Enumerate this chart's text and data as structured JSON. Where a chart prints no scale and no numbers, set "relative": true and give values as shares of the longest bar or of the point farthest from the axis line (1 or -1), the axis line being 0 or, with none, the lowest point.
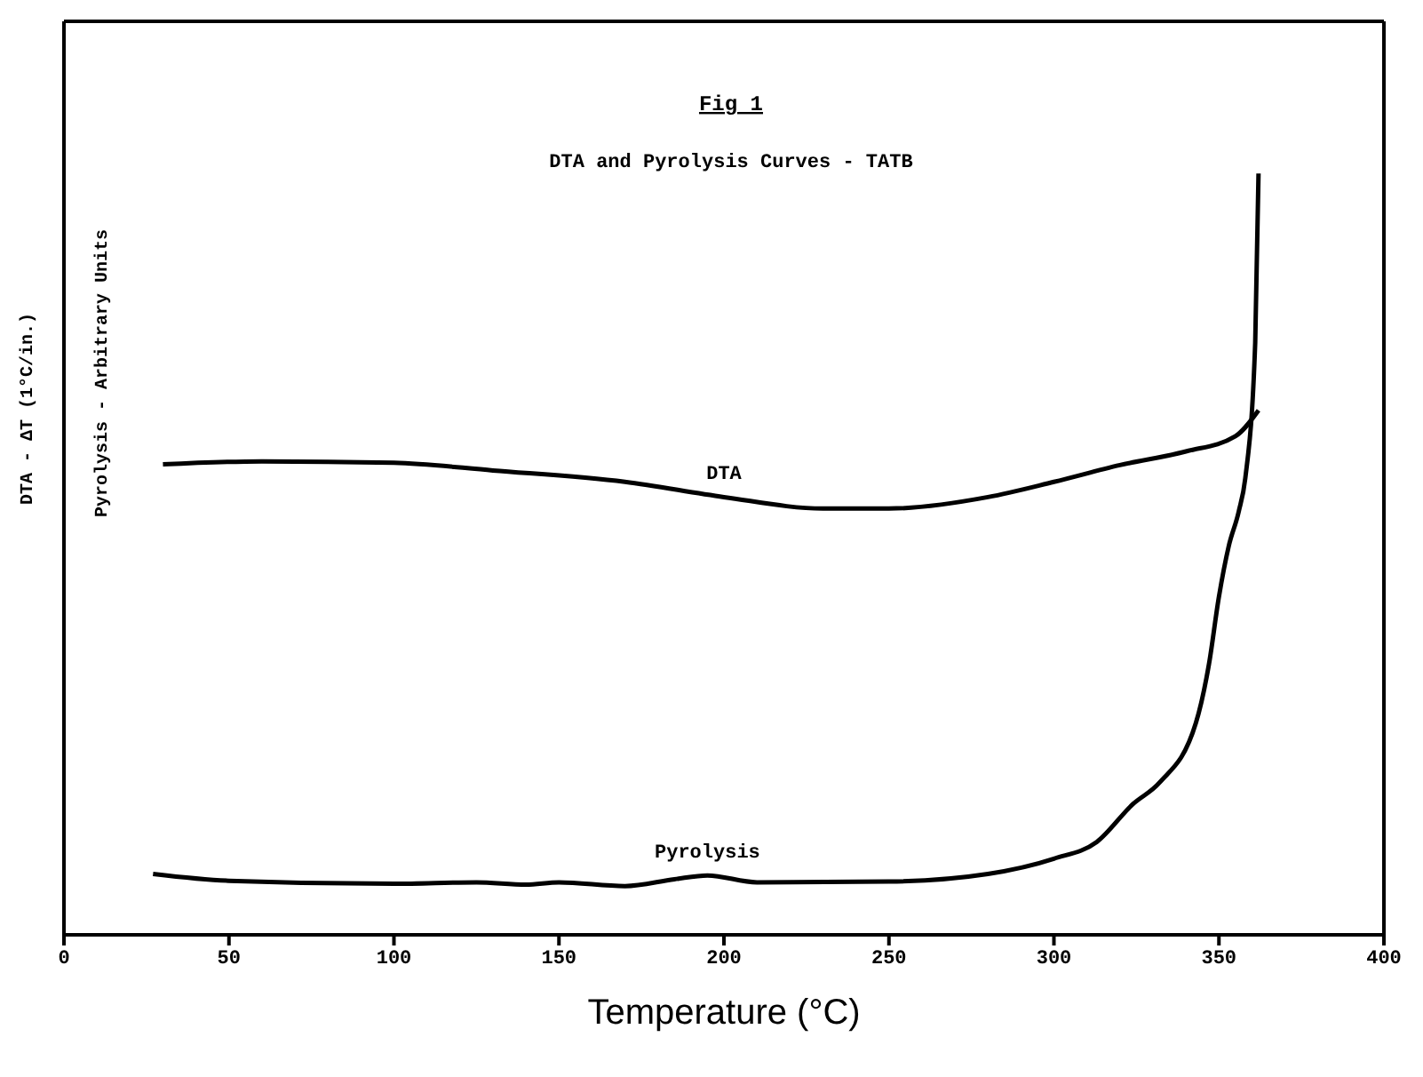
{
  "chart_data": {
    "type": "line",
    "title": "Fig 1",
    "subtitle": "DTA and Pyrolysis Curves - TATB",
    "xlabel": "Temperature (°C)",
    "ylabel": "DTA - ΔT (1°C/in.)",
    "y2label": "Pyrolysis - Arbitrary Units",
    "relative": true,
    "marker": "none",
    "xlim": [
      0,
      400
    ],
    "xticks": [
      0,
      50,
      100,
      150,
      200,
      250,
      300,
      {
        "value": 350,
        "label": "350"
      },
      400
    ],
    "series": [
      {
        "name": "DTA",
        "color": "#000000",
        "x": [
          30,
          60,
          100,
          130,
          170,
          200,
          230,
          250,
          280,
          300,
          320,
          340,
          355,
          362
        ],
        "values": [
          0.618,
          0.622,
          0.62,
          0.61,
          0.595,
          0.575,
          0.56,
          0.56,
          0.575,
          0.595,
          0.617,
          0.635,
          0.655,
          0.689
        ]
      },
      {
        "name": "Pyrolysis",
        "color": "#000000",
        "x": [
          27,
          50,
          100,
          125,
          140,
          150,
          170,
          185,
          195,
          210,
          250,
          280,
          300,
          313,
          324,
          332,
          343,
          347,
          350,
          353,
          356,
          358,
          361,
          362
        ],
        "values": [
          0.08,
          0.071,
          0.067,
          0.069,
          0.066,
          0.069,
          0.064,
          0.073,
          0.078,
          0.069,
          0.07,
          0.08,
          0.1,
          0.122,
          0.172,
          0.2,
          0.278,
          0.356,
          0.444,
          0.511,
          0.556,
          0.6,
          0.778,
          1.0
        ]
      }
    ]
  }
}
